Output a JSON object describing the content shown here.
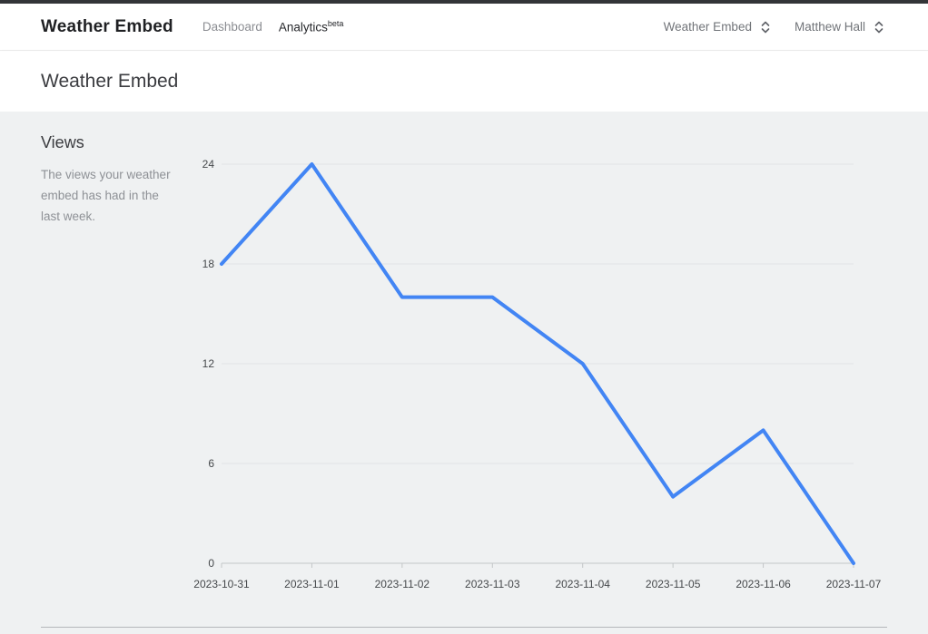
{
  "header": {
    "brand": "Weather Embed",
    "nav": [
      {
        "label": "Dashboard",
        "active": false
      },
      {
        "label": "Analytics",
        "badge": "beta",
        "active": true
      }
    ],
    "selectors": [
      {
        "label": "Weather Embed",
        "icon": "unfold-icon"
      },
      {
        "label": "Matthew Hall",
        "icon": "unfold-icon"
      }
    ]
  },
  "page": {
    "title": "Weather Embed"
  },
  "views_section": {
    "title": "Views",
    "description": "The views your weather embed has had in the last week."
  },
  "chart_data": {
    "type": "line",
    "title": "Views",
    "x": [
      "2023-10-31",
      "2023-11-01",
      "2023-11-02",
      "2023-11-03",
      "2023-11-04",
      "2023-11-05",
      "2023-11-06",
      "2023-11-07"
    ],
    "series": [
      {
        "name": "Views",
        "values": [
          18,
          24,
          16,
          16,
          12,
          4,
          8,
          0
        ]
      }
    ],
    "xlabel": "",
    "ylabel": "",
    "ylim": [
      0,
      24
    ],
    "yticks": [
      0,
      6,
      12,
      18,
      24
    ],
    "grid": true,
    "legend": "none",
    "line_color": "#4285f4",
    "gridline_color": "#e2e4e6",
    "baseline_color": "#c3c6c8",
    "label_color": "#45484b"
  },
  "colors": {
    "accent_blue": "#4285f4",
    "top_accent_bar": "#333538",
    "content_background": "#eff1f2"
  }
}
